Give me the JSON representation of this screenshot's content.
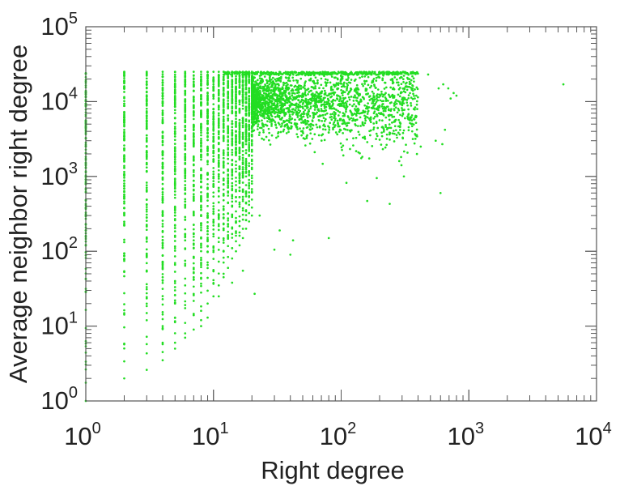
{
  "chart_data": {
    "type": "scatter",
    "title": "",
    "xlabel": "Right degree",
    "ylabel": "Average neighbor right degree",
    "x_scale": "log",
    "y_scale": "log",
    "xlim": [
      1,
      10000
    ],
    "ylim": [
      1,
      100000
    ],
    "grid": false,
    "legend": "none",
    "marker_color": "#22dd22",
    "x_ticks": [
      {
        "base": "10",
        "exp": "0",
        "value": 1
      },
      {
        "base": "10",
        "exp": "1",
        "value": 10
      },
      {
        "base": "10",
        "exp": "2",
        "value": 100
      },
      {
        "base": "10",
        "exp": "3",
        "value": 1000
      },
      {
        "base": "10",
        "exp": "4",
        "value": 10000
      }
    ],
    "y_ticks": [
      {
        "base": "10",
        "exp": "0",
        "value": 1
      },
      {
        "base": "10",
        "exp": "1",
        "value": 10
      },
      {
        "base": "10",
        "exp": "2",
        "value": 100
      },
      {
        "base": "10",
        "exp": "3",
        "value": 1000
      },
      {
        "base": "10",
        "exp": "4",
        "value": 10000
      },
      {
        "base": "10",
        "exp": "5",
        "value": 100000
      }
    ],
    "columns": [
      {
        "x": 1,
        "y_min": 1,
        "y_max": 24000
      },
      {
        "x": 2,
        "y_min": 2,
        "y_max": 25000
      },
      {
        "x": 3,
        "y_min": 2.6,
        "y_max": 25000
      },
      {
        "x": 4,
        "y_min": 3.5,
        "y_max": 25000
      },
      {
        "x": 5,
        "y_min": 5,
        "y_max": 25000
      },
      {
        "x": 6,
        "y_min": 7,
        "y_max": 25000
      },
      {
        "x": 7,
        "y_min": 9,
        "y_max": 25000
      },
      {
        "x": 8,
        "y_min": 12,
        "y_max": 25000
      },
      {
        "x": 9,
        "y_min": 20,
        "y_max": 25000
      },
      {
        "x": 10,
        "y_min": 25,
        "y_max": 25000
      },
      {
        "x": 11,
        "y_min": 35,
        "y_max": 25000
      },
      {
        "x": 12,
        "y_min": 50,
        "y_max": 25000
      },
      {
        "x": 13,
        "y_min": 60,
        "y_max": 25000
      },
      {
        "x": 14,
        "y_min": 80,
        "y_max": 25000
      },
      {
        "x": 15,
        "y_min": 100,
        "y_max": 25000
      },
      {
        "x": 16,
        "y_min": 120,
        "y_max": 25000
      },
      {
        "x": 17,
        "y_min": 150,
        "y_max": 25000
      },
      {
        "x": 18,
        "y_min": 200,
        "y_max": 25000
      },
      {
        "x": 19,
        "y_min": 250,
        "y_max": 25000
      },
      {
        "x": 20,
        "y_min": 300,
        "y_max": 25000
      }
    ],
    "cloud": {
      "x_range": [
        20,
        400
      ],
      "y_center_x": [
        20,
        400
      ],
      "y_center": [
        10000,
        10000
      ],
      "y_max": 25000
    },
    "sparse_points": [
      [
        21,
        27
      ],
      [
        17,
        55
      ],
      [
        14,
        38
      ],
      [
        11,
        25
      ],
      [
        9,
        13
      ],
      [
        8,
        10
      ],
      [
        6,
        8
      ],
      [
        5,
        13
      ],
      [
        5,
        6
      ],
      [
        4,
        4.5
      ],
      [
        4,
        6
      ],
      [
        4,
        10
      ],
      [
        5,
        20
      ],
      [
        5,
        40
      ],
      [
        6,
        35
      ],
      [
        7,
        60
      ],
      [
        8,
        70
      ],
      [
        4,
        70
      ],
      [
        4,
        120
      ],
      [
        7,
        140
      ],
      [
        9,
        140
      ],
      [
        12,
        130
      ],
      [
        7,
        45
      ],
      [
        12,
        45
      ],
      [
        30,
        105
      ],
      [
        40,
        90
      ],
      [
        42,
        140
      ],
      [
        33,
        190
      ],
      [
        23,
        300
      ],
      [
        14,
        170
      ],
      [
        9,
        280
      ],
      [
        8,
        220
      ],
      [
        11,
        230
      ],
      [
        14,
        310
      ],
      [
        10,
        400
      ],
      [
        5,
        300
      ],
      [
        6,
        460
      ],
      [
        80,
        150
      ],
      [
        110,
        820
      ],
      [
        160,
        470
      ],
      [
        240,
        430
      ],
      [
        310,
        1000
      ],
      [
        190,
        950
      ],
      [
        600,
        600
      ],
      [
        550,
        3000
      ],
      [
        620,
        2700
      ],
      [
        650,
        4200
      ],
      [
        720,
        11000
      ],
      [
        760,
        13000
      ],
      [
        690,
        15000
      ],
      [
        630,
        17000
      ],
      [
        580,
        15000
      ],
      [
        480,
        23000
      ],
      [
        800,
        12000
      ],
      [
        420,
        2500
      ],
      [
        360,
        4000
      ],
      [
        5500,
        17000
      ]
    ]
  }
}
